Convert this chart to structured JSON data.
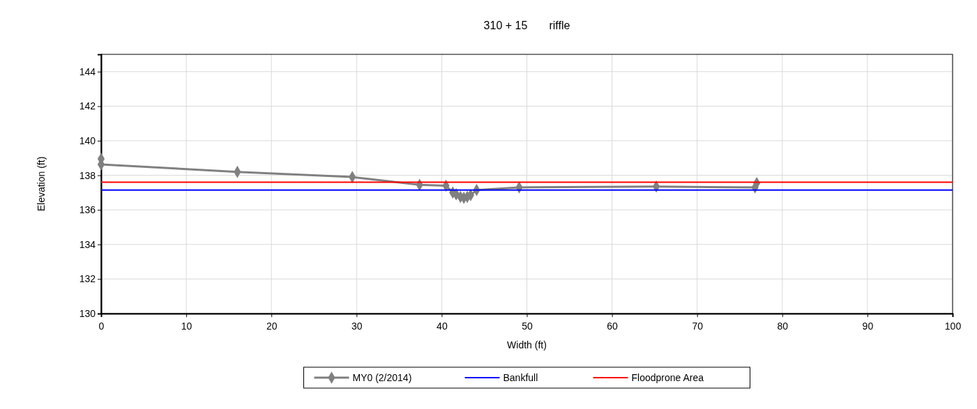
{
  "chart_data": {
    "type": "line",
    "title": "310 + 15       riffle",
    "xlabel": "Width (ft)",
    "ylabel": "Elevation (ft)",
    "xlim": [
      0,
      100
    ],
    "xticks": [
      0,
      10,
      20,
      30,
      40,
      50,
      60,
      70,
      80,
      90,
      100
    ],
    "ylim": [
      130,
      145
    ],
    "yticks": [
      130,
      132,
      134,
      136,
      138,
      140,
      142,
      144
    ],
    "grid": true,
    "legend": "bottom",
    "marker": "diamond",
    "line_style": "solid",
    "series": [
      {
        "name": "MY0 (2/2014)",
        "color": "#808080",
        "x": [
          0,
          0,
          16.0,
          29.5,
          37.4,
          40.5,
          41.3,
          41.7,
          42.2,
          42.6,
          43.0,
          43.4,
          44.1,
          49.1,
          65.2,
          76.8,
          77.0
        ],
        "values": [
          138.95,
          138.63,
          138.2,
          137.9,
          137.45,
          137.4,
          137.0,
          136.9,
          136.75,
          136.7,
          136.75,
          136.85,
          137.15,
          137.3,
          137.35,
          137.3,
          137.55
        ]
      },
      {
        "name": "Bankfull",
        "color": "#0000ff",
        "marker": "none",
        "x": [
          0,
          100
        ],
        "values": [
          137.15,
          137.15
        ]
      },
      {
        "name": "Floodprone Area",
        "color": "#ff0000",
        "marker": "none",
        "x": [
          0,
          100
        ],
        "values": [
          137.6,
          137.6
        ]
      }
    ]
  }
}
